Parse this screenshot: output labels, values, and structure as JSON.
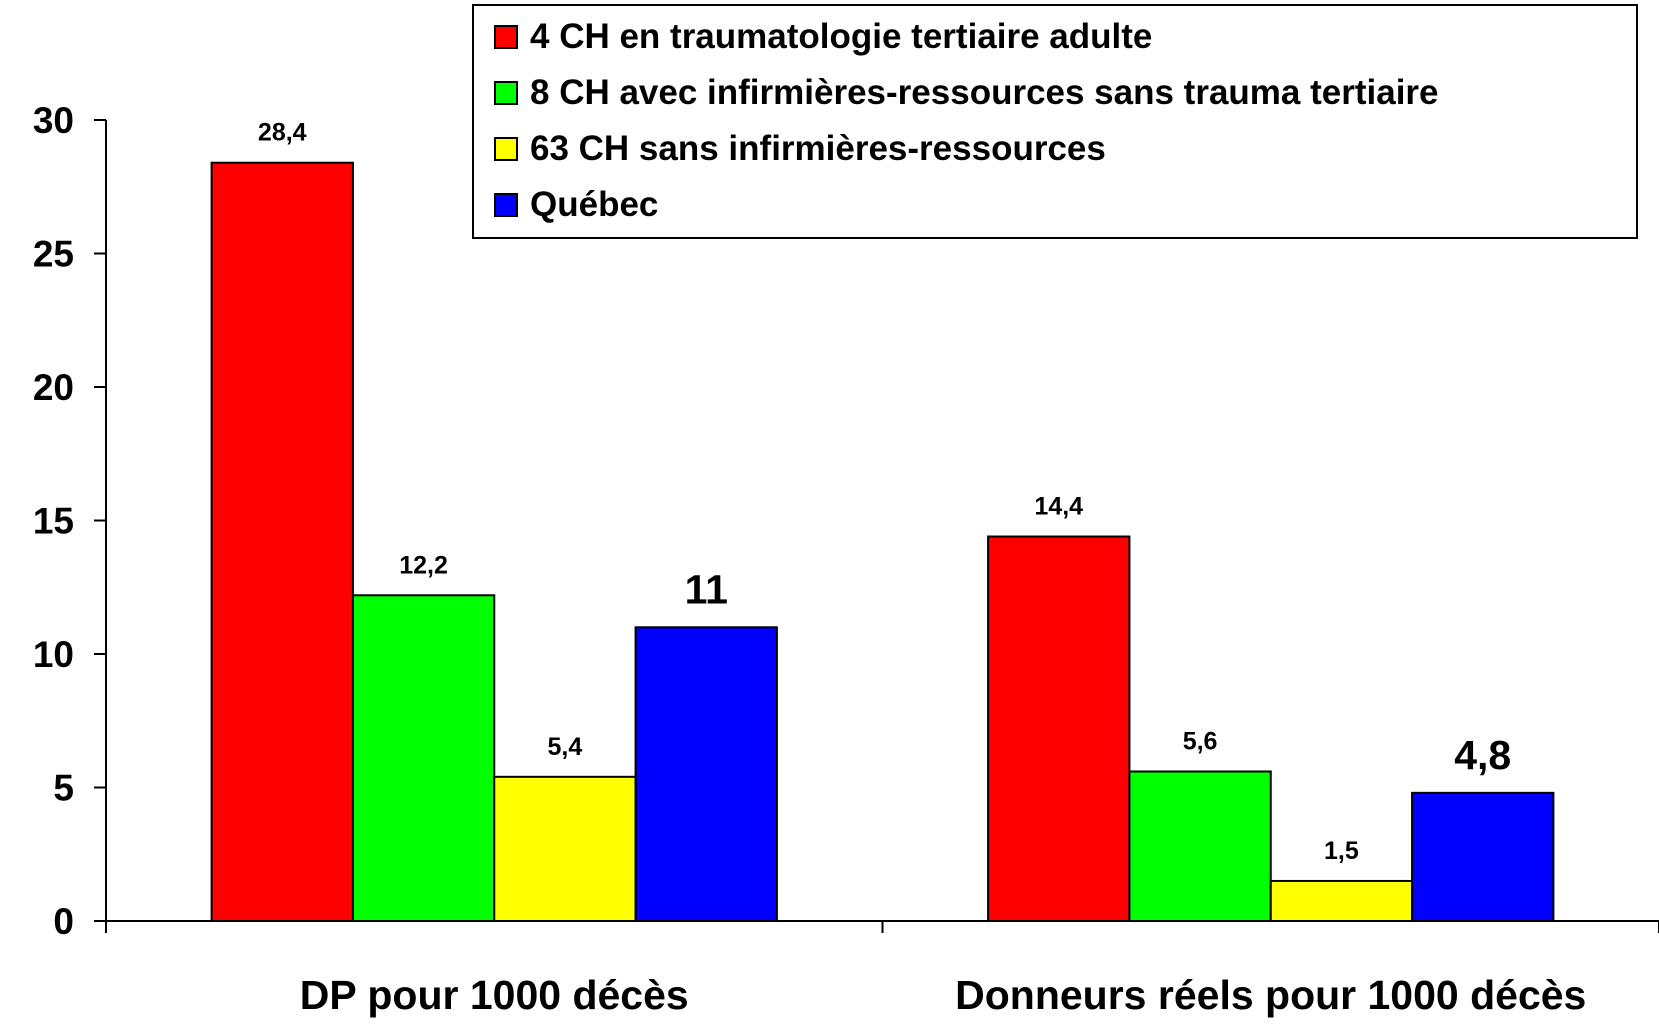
{
  "chart_data": {
    "type": "bar",
    "categories": [
      "DP pour 1000 décès",
      "Donneurs réels pour 1000 décès"
    ],
    "series": [
      {
        "name": "4 CH en traumatologie tertiaire adulte",
        "color": "#ff0000",
        "values": [
          28.4,
          14.4
        ],
        "value_labels": [
          "28,4",
          "14,4"
        ]
      },
      {
        "name": "8 CH avec infirmières-ressources sans trauma tertiaire",
        "color": "#00ff00",
        "values": [
          12.2,
          5.6
        ],
        "value_labels": [
          "12,2",
          "5,6"
        ]
      },
      {
        "name": "63 CH sans infirmières-ressources",
        "color": "#ffff00",
        "values": [
          5.4,
          1.5
        ],
        "value_labels": [
          "5,4",
          "1,5"
        ]
      },
      {
        "name": "Québec",
        "color": "#0000ff",
        "values": [
          11,
          4.8
        ],
        "value_labels": [
          "11",
          "4,8"
        ]
      }
    ],
    "ylim": [
      0,
      30
    ],
    "yticks": [
      0,
      5,
      10,
      15,
      20,
      25,
      30
    ],
    "grid": false,
    "legend": "top-right"
  }
}
